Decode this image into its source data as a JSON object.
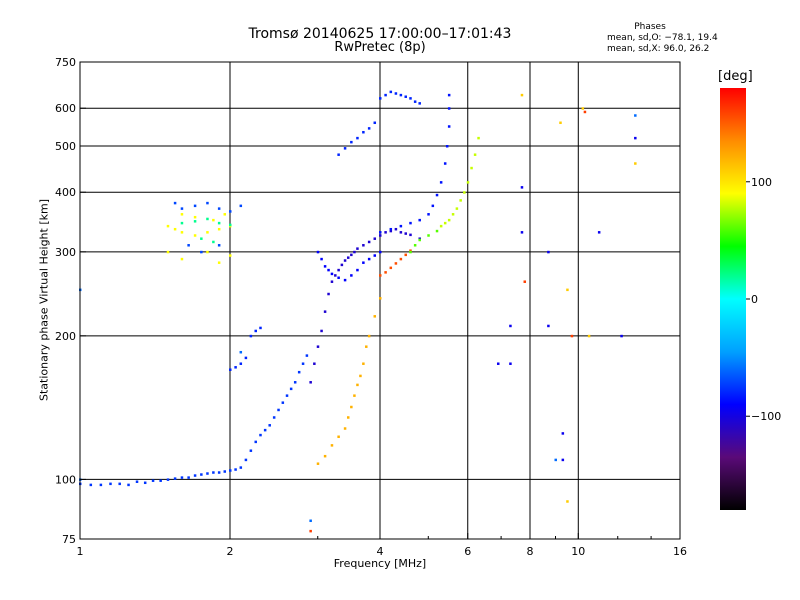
{
  "chart_data": {
    "type": "scatter",
    "title": "Tromsø 20140625 17:00:00–17:01:43",
    "subtitle": "RwPretec (8p)",
    "phase_stats": {
      "label": "Phases",
      "line1": "mean, sd,O: −78.1, 19.4",
      "line2": "mean, sd,X:  96.0, 26.2"
    },
    "xlabel": "Frequency [MHz]",
    "ylabel": "Stationary phase Virtual Height [km]",
    "x_scale": "log",
    "y_scale": "log",
    "xlim": [
      1,
      16
    ],
    "ylim": [
      75,
      750
    ],
    "x_ticks": [
      {
        "value": 1,
        "label": "1"
      },
      {
        "value": 2,
        "label": "2"
      },
      {
        "value": 4,
        "label": "4"
      },
      {
        "value": 6,
        "label": "6"
      },
      {
        "value": 8,
        "label": "8"
      },
      {
        "value": 10,
        "label": "10"
      },
      {
        "value": 16,
        "label": "16"
      }
    ],
    "x_gridlines": [
      2,
      4,
      6,
      8,
      10
    ],
    "y_ticks": [
      {
        "value": 75,
        "label": "75"
      },
      {
        "value": 100,
        "label": "100"
      },
      {
        "value": 200,
        "label": "200"
      },
      {
        "value": 300,
        "label": "300"
      },
      {
        "value": 400,
        "label": "400"
      },
      {
        "value": 500,
        "label": "500"
      },
      {
        "value": 600,
        "label": "600"
      },
      {
        "value": 750,
        "label": "750"
      }
    ],
    "y_gridlines": [
      100,
      200,
      300,
      400,
      500,
      600
    ],
    "grid": true,
    "colorbar": {
      "label": "[deg]",
      "range": [
        -180,
        180
      ],
      "ticks": [
        {
          "value": 100,
          "label": "100"
        },
        {
          "value": 0,
          "label": "0"
        },
        {
          "value": -100,
          "label": "−100"
        }
      ],
      "colors": [
        "#000000",
        "#5a0a78",
        "#0000ff",
        "#00a0ff",
        "#00ffff",
        "#00ff00",
        "#ffff00",
        "#ff8c00",
        "#ff0000"
      ]
    },
    "traces": [
      {
        "phase": -75,
        "points": [
          [
            1.0,
            98
          ],
          [
            1.05,
            97.5
          ],
          [
            1.1,
            97.5
          ],
          [
            1.15,
            98
          ],
          [
            1.2,
            98
          ],
          [
            1.25,
            97.5
          ],
          [
            1.3,
            99
          ],
          [
            1.35,
            98.5
          ],
          [
            1.4,
            99.5
          ],
          [
            1.45,
            99.5
          ],
          [
            1.5,
            100
          ],
          [
            1.55,
            100.5
          ],
          [
            1.6,
            101
          ],
          [
            1.65,
            101
          ],
          [
            1.7,
            102
          ],
          [
            1.75,
            102.5
          ],
          [
            1.8,
            103
          ],
          [
            1.85,
            103.5
          ],
          [
            1.9,
            103.5
          ],
          [
            1.95,
            104
          ],
          [
            2.0,
            104.5
          ],
          [
            2.05,
            105
          ],
          [
            2.1,
            106
          ],
          [
            2.15,
            110
          ],
          [
            2.2,
            115
          ],
          [
            2.25,
            120
          ],
          [
            2.3,
            124
          ],
          [
            2.35,
            127
          ],
          [
            2.4,
            130
          ],
          [
            2.45,
            135
          ],
          [
            2.5,
            140
          ],
          [
            2.55,
            145
          ],
          [
            2.6,
            150
          ],
          [
            2.65,
            155
          ],
          [
            2.7,
            160
          ],
          [
            2.75,
            168
          ],
          [
            2.8,
            175
          ],
          [
            2.85,
            182
          ]
        ]
      },
      {
        "phase": -80,
        "points": [
          [
            2.0,
            170
          ],
          [
            2.05,
            172
          ],
          [
            2.1,
            175
          ],
          [
            2.15,
            180
          ],
          [
            2.2,
            200
          ],
          [
            2.25,
            205
          ],
          [
            2.3,
            208
          ]
        ]
      },
      {
        "phase": -105,
        "points": [
          [
            2.9,
            160
          ],
          [
            2.95,
            175
          ],
          [
            3.0,
            190
          ],
          [
            3.05,
            205
          ],
          [
            3.1,
            225
          ],
          [
            3.15,
            245
          ],
          [
            3.2,
            260
          ],
          [
            3.25,
            268
          ],
          [
            3.3,
            275
          ],
          [
            3.35,
            282
          ],
          [
            3.4,
            288
          ],
          [
            3.45,
            292
          ],
          [
            3.5,
            296
          ],
          [
            3.55,
            300
          ],
          [
            3.6,
            305
          ],
          [
            3.7,
            310
          ],
          [
            3.8,
            315
          ],
          [
            3.9,
            320
          ],
          [
            4.0,
            325
          ],
          [
            4.1,
            330
          ],
          [
            4.2,
            332
          ],
          [
            4.3,
            335
          ],
          [
            4.4,
            330
          ],
          [
            4.5,
            328
          ],
          [
            4.6,
            326
          ],
          [
            4.8,
            320
          ]
        ]
      },
      {
        "phase": -90,
        "points": [
          [
            3.0,
            300
          ],
          [
            3.05,
            290
          ],
          [
            3.1,
            280
          ],
          [
            3.15,
            275
          ],
          [
            3.2,
            270
          ],
          [
            3.3,
            265
          ],
          [
            3.4,
            262
          ],
          [
            3.5,
            268
          ],
          [
            3.6,
            275
          ],
          [
            3.7,
            285
          ],
          [
            3.8,
            290
          ],
          [
            3.9,
            295
          ],
          [
            4.0,
            300
          ]
        ]
      },
      {
        "phase": -85,
        "points": [
          [
            4.0,
            330
          ],
          [
            4.2,
            335
          ],
          [
            4.4,
            340
          ],
          [
            4.6,
            345
          ],
          [
            4.8,
            350
          ],
          [
            5.0,
            360
          ],
          [
            5.1,
            375
          ],
          [
            5.2,
            395
          ],
          [
            5.3,
            420
          ],
          [
            5.4,
            460
          ],
          [
            5.45,
            500
          ],
          [
            5.5,
            550
          ],
          [
            5.5,
            600
          ],
          [
            5.5,
            640
          ]
        ]
      },
      {
        "phase": -80,
        "points": [
          [
            3.3,
            480
          ],
          [
            3.4,
            495
          ],
          [
            3.5,
            510
          ],
          [
            3.6,
            520
          ],
          [
            3.7,
            535
          ],
          [
            3.8,
            545
          ],
          [
            3.9,
            560
          ]
        ]
      },
      {
        "phase": -80,
        "points": [
          [
            4.0,
            630
          ],
          [
            4.1,
            640
          ],
          [
            4.2,
            650
          ],
          [
            4.3,
            645
          ],
          [
            4.4,
            640
          ],
          [
            4.5,
            635
          ],
          [
            4.6,
            630
          ],
          [
            4.7,
            620
          ],
          [
            4.8,
            615
          ]
        ]
      },
      {
        "phase": 120,
        "points": [
          [
            3.0,
            108
          ],
          [
            3.1,
            112
          ],
          [
            3.2,
            118
          ],
          [
            3.3,
            123
          ],
          [
            3.4,
            128
          ],
          [
            3.45,
            135
          ],
          [
            3.5,
            142
          ],
          [
            3.55,
            150
          ],
          [
            3.6,
            158
          ],
          [
            3.65,
            165
          ],
          [
            3.7,
            175
          ],
          [
            3.75,
            190
          ],
          [
            3.8,
            200
          ],
          [
            3.9,
            220
          ],
          [
            4.0,
            240
          ]
        ]
      },
      {
        "phase": 155,
        "points": [
          [
            4.0,
            268
          ],
          [
            4.1,
            272
          ],
          [
            4.2,
            278
          ],
          [
            4.3,
            284
          ],
          [
            4.4,
            290
          ],
          [
            4.5,
            296
          ],
          [
            4.6,
            302
          ]
        ]
      },
      {
        "phase": 80,
        "points": [
          [
            5.3,
            340
          ],
          [
            5.4,
            345
          ],
          [
            5.5,
            350
          ],
          [
            5.6,
            360
          ],
          [
            5.7,
            370
          ],
          [
            5.8,
            385
          ],
          [
            5.9,
            400
          ],
          [
            6.0,
            420
          ],
          [
            6.1,
            450
          ],
          [
            6.2,
            480
          ],
          [
            6.3,
            520
          ]
        ]
      },
      {
        "phase": 60,
        "points": [
          [
            4.6,
            300
          ],
          [
            4.7,
            310
          ],
          [
            4.8,
            318
          ],
          [
            5.0,
            325
          ],
          [
            5.2,
            332
          ]
        ]
      },
      {
        "phase": 90,
        "points": [
          [
            1.5,
            340
          ],
          [
            1.55,
            335
          ],
          [
            1.6,
            330
          ],
          [
            1.7,
            325
          ],
          [
            1.8,
            330
          ],
          [
            1.9,
            335
          ],
          [
            2.0,
            340
          ],
          [
            1.6,
            360
          ],
          [
            1.7,
            355
          ],
          [
            1.85,
            350
          ],
          [
            1.95,
            360
          ],
          [
            1.5,
            300
          ],
          [
            1.6,
            290
          ],
          [
            1.8,
            300
          ],
          [
            1.9,
            285
          ],
          [
            2.0,
            295
          ]
        ]
      },
      {
        "phase": 20,
        "points": [
          [
            1.6,
            345
          ],
          [
            1.7,
            348
          ],
          [
            1.8,
            352
          ],
          [
            1.9,
            345
          ],
          [
            2.0,
            342
          ],
          [
            1.75,
            320
          ],
          [
            1.85,
            315
          ]
        ]
      },
      {
        "phase": -70,
        "points": [
          [
            1.55,
            380
          ],
          [
            1.6,
            370
          ],
          [
            1.7,
            375
          ],
          [
            1.8,
            380
          ],
          [
            1.9,
            370
          ],
          [
            2.0,
            365
          ],
          [
            2.1,
            375
          ],
          [
            1.65,
            310
          ],
          [
            1.75,
            300
          ],
          [
            1.9,
            310
          ]
        ]
      },
      {
        "phase": -95,
        "points": [
          [
            6.9,
            175
          ],
          [
            7.3,
            210
          ],
          [
            7.3,
            175
          ],
          [
            7.7,
            410
          ],
          [
            7.7,
            330
          ],
          [
            8.7,
            210
          ],
          [
            8.7,
            300
          ],
          [
            9.3,
            125
          ],
          [
            12.2,
            200
          ],
          [
            13.0,
            520
          ],
          [
            11.0,
            330
          ],
          [
            9.3,
            110
          ]
        ]
      },
      {
        "phase": 110,
        "points": [
          [
            7.7,
            640
          ],
          [
            9.2,
            560
          ],
          [
            10.2,
            600
          ],
          [
            13.0,
            460
          ],
          [
            9.5,
            250
          ],
          [
            9.5,
            90
          ],
          [
            10.5,
            200
          ]
        ]
      },
      {
        "phase": 160,
        "points": [
          [
            10.3,
            590
          ],
          [
            9.7,
            200
          ],
          [
            7.8,
            260
          ],
          [
            2.9,
            78
          ]
        ]
      },
      {
        "phase": -60,
        "points": [
          [
            2.9,
            82
          ],
          [
            1.0,
            100
          ],
          [
            1.0,
            250
          ],
          [
            13.0,
            580
          ],
          [
            9.0,
            110
          ],
          [
            2.1,
            185
          ]
        ]
      }
    ]
  }
}
